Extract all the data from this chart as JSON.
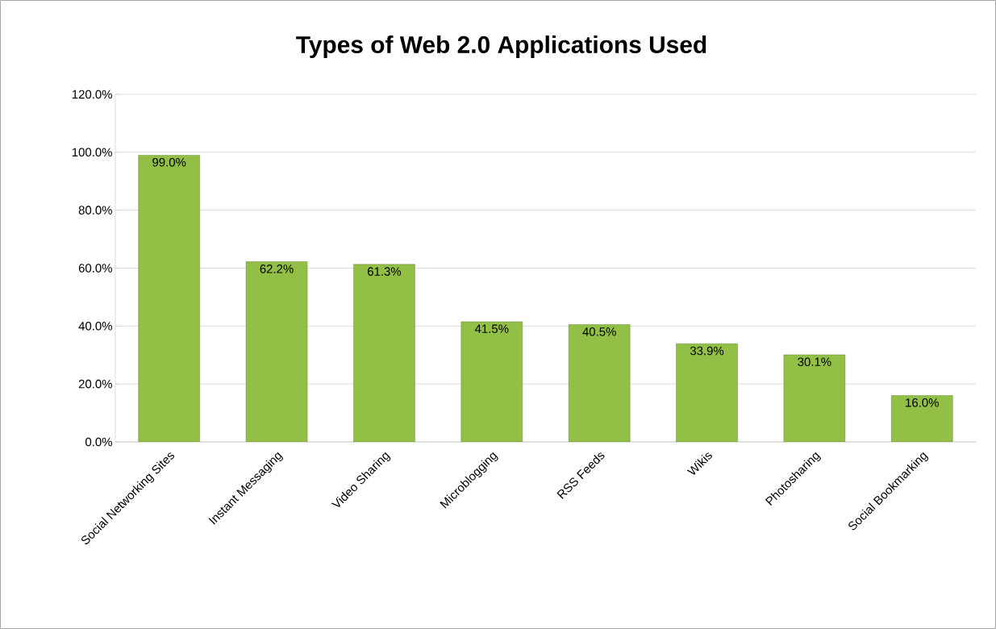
{
  "chart_data": {
    "type": "bar",
    "title": "Types of Web 2.0 Applications Used",
    "categories": [
      "Social Networking Sites",
      "Instant Messaging",
      "Video Sharing",
      "Microblogging",
      "RSS Feeds",
      "Wikis",
      "Photosharing",
      "Social Bookmarking"
    ],
    "values": [
      99.0,
      62.2,
      61.3,
      41.5,
      40.5,
      33.9,
      30.1,
      16.0
    ],
    "value_labels": [
      "99.0%",
      "62.2%",
      "61.3%",
      "41.5%",
      "40.5%",
      "33.9%",
      "30.1%",
      "16.0%"
    ],
    "color": "#92c046",
    "ylim": [
      0,
      120
    ],
    "yticks": [
      {
        "value": 0,
        "label": "0.0%"
      },
      {
        "value": 20,
        "label": "20.0%"
      },
      {
        "value": 40,
        "label": "40.0%"
      },
      {
        "value": 60,
        "label": "60.0%"
      },
      {
        "value": 80,
        "label": "80.0%"
      },
      {
        "value": 100,
        "label": "100.0%"
      },
      {
        "value": 120,
        "label": "120.0%"
      }
    ],
    "grid": "y"
  }
}
